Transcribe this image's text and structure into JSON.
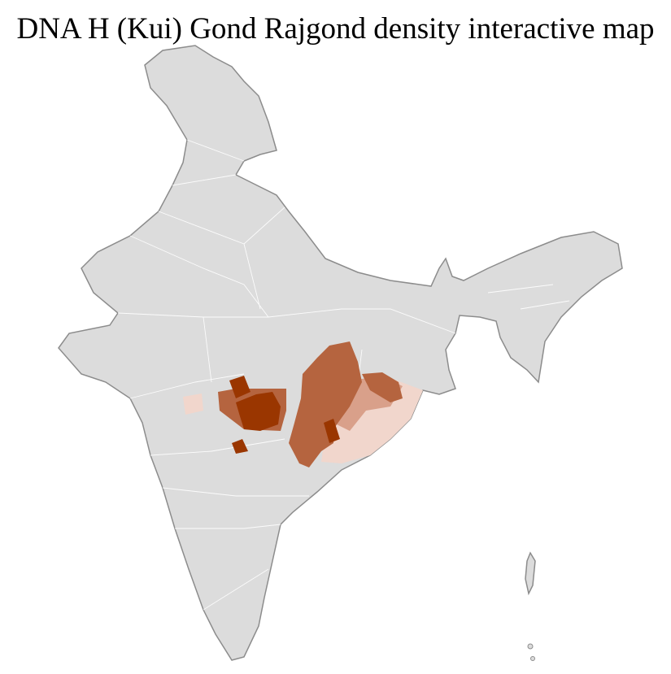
{
  "title": "DNA H (Kui) Gond Rajgond density interactive map",
  "colors": {
    "land": "#dcdcdc",
    "border": "#8c8c8c",
    "district_lines": "#ffffff",
    "density_high": "#9a3600",
    "density_medium": "#b5643f",
    "density_low": "#d9a08a",
    "density_very_low": "#f1d6cc"
  }
}
